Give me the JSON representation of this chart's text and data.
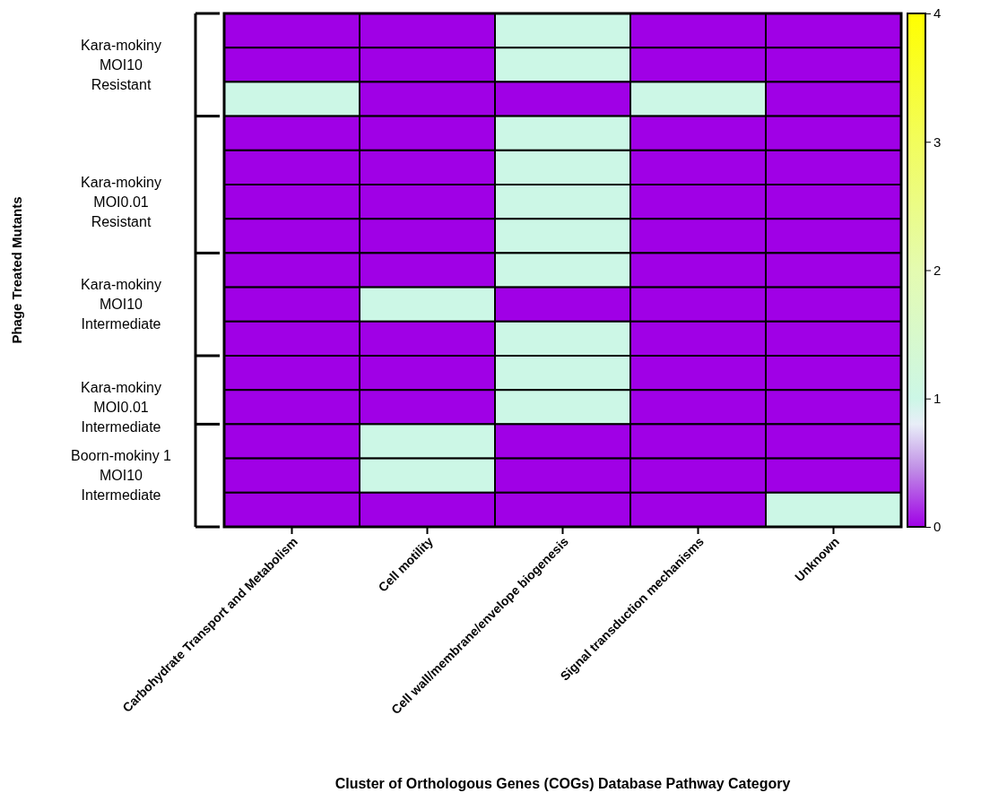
{
  "chart_data": {
    "type": "heatmap",
    "xlabel": "Cluster of Orthologous Genes (COGs) Database Pathway Category",
    "ylabel": "Phage Treated Mutants",
    "categories": [
      "Carbohydrate Transport and Metabolism",
      "Cell motility",
      "Cell wall/membrane/envelope biogenesis",
      "Signal transduction mechanisms",
      "Unknown"
    ],
    "y_categories": [
      null,
      "Kara-mokiny\nMOI10\nResistant",
      null,
      null,
      null,
      "Kara-mokiny\nMOI0.01\nResistant",
      null,
      null,
      "Kara-mokiny\nMOI10\nIntermediate",
      null,
      null,
      "Kara-mokiny\nMOI0.01\nIntermediate",
      null,
      "Boorn-mokiny 1\nMOI10\nIntermediate",
      null
    ],
    "cells": [
      [
        0,
        0,
        1,
        0,
        0
      ],
      [
        0,
        0,
        1,
        0,
        0
      ],
      [
        1,
        0,
        0,
        1,
        0
      ],
      [
        0,
        0,
        1,
        0,
        0
      ],
      [
        0,
        0,
        1,
        0,
        0
      ],
      [
        0,
        0,
        1,
        0,
        0
      ],
      [
        0,
        0,
        1,
        0,
        0
      ],
      [
        0,
        0,
        1,
        0,
        0
      ],
      [
        0,
        1,
        0,
        0,
        0
      ],
      [
        0,
        0,
        1,
        0,
        0
      ],
      [
        0,
        0,
        1,
        0,
        0
      ],
      [
        0,
        0,
        1,
        0,
        0
      ],
      [
        0,
        1,
        0,
        0,
        0
      ],
      [
        0,
        1,
        0,
        0,
        0
      ],
      [
        0,
        0,
        0,
        0,
        1
      ]
    ],
    "clim": [
      0,
      4
    ],
    "cticks": [
      0,
      1,
      2,
      3,
      4
    ]
  }
}
